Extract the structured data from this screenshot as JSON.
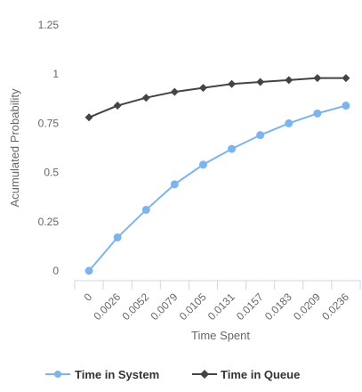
{
  "chart_data": {
    "type": "line",
    "title": "",
    "xlabel": "Time Spent",
    "ylabel": "Acumulated Probability",
    "categories": [
      "0",
      "0.0026",
      "0.0052",
      "0.0079",
      "0.0105",
      "0.0131",
      "0.0157",
      "0.0183",
      "0.0209",
      "0.0236"
    ],
    "ylim": [
      0,
      1.25
    ],
    "yticks": [
      "0",
      "0.25",
      "0.5",
      "0.75",
      "1",
      "1.25"
    ],
    "grid": false,
    "legend_position": "bottom",
    "series": [
      {
        "name": "Time in System",
        "color": "#7cb5ec",
        "marker": "circle",
        "values": [
          0.0,
          0.17,
          0.31,
          0.44,
          0.54,
          0.62,
          0.69,
          0.75,
          0.8,
          0.84
        ]
      },
      {
        "name": "Time in Queue",
        "color": "#434348",
        "marker": "diamond",
        "values": [
          0.78,
          0.84,
          0.88,
          0.91,
          0.93,
          0.95,
          0.96,
          0.97,
          0.98,
          0.98
        ]
      }
    ]
  }
}
